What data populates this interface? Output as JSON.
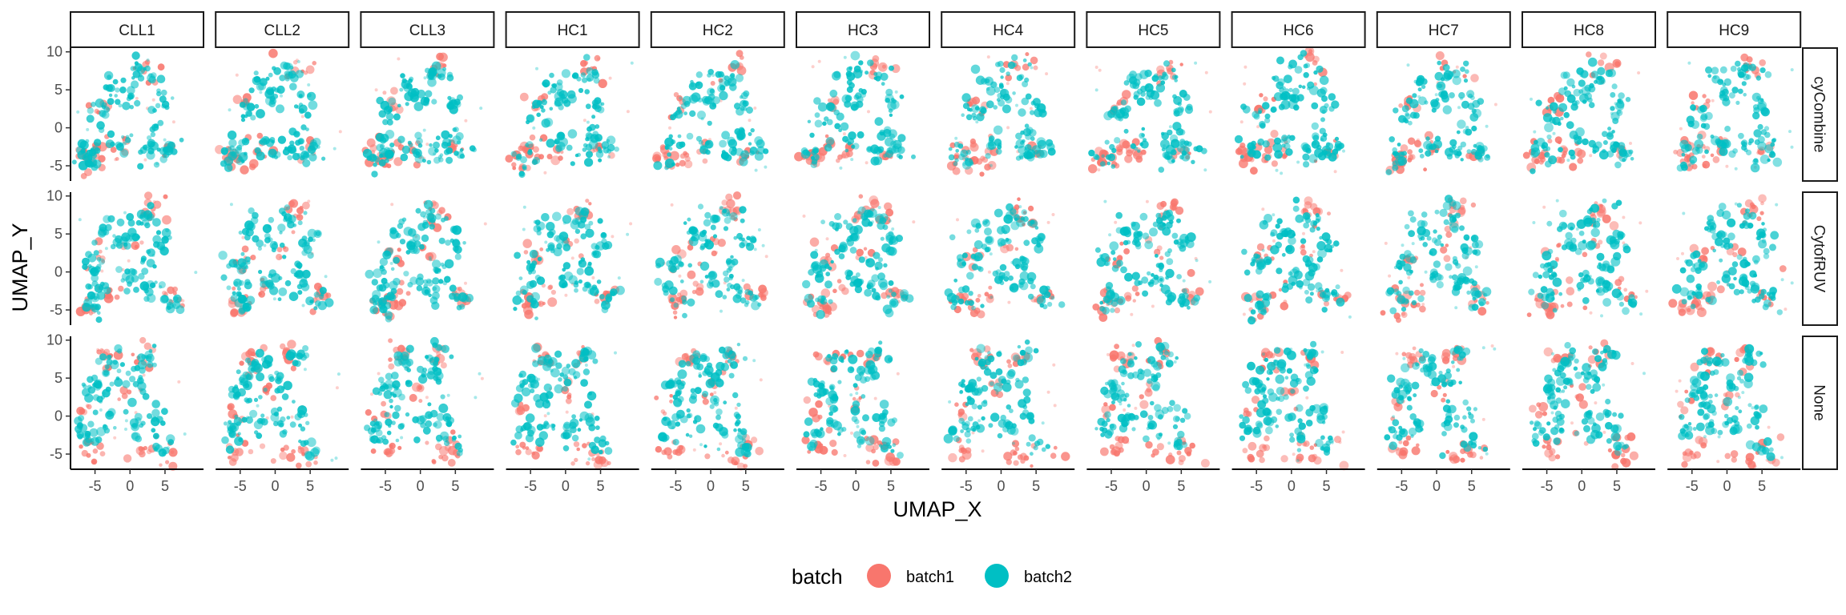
{
  "chart_data": {
    "type": "scatter",
    "facet_columns": [
      "CLL1",
      "CLL2",
      "CLL3",
      "HC1",
      "HC2",
      "HC3",
      "HC4",
      "HC5",
      "HC6",
      "HC7",
      "HC8",
      "HC9"
    ],
    "facet_rows": [
      "cyCombine",
      "CytofRUV",
      "None"
    ],
    "xlabel": "UMAP_X",
    "ylabel": "UMAP_Y",
    "x_ticks": [
      -5,
      0,
      5
    ],
    "y_ticks": [
      -5,
      0,
      5,
      10
    ],
    "xlim": [
      -8.5,
      10.5
    ],
    "ylim": [
      -7,
      10.5
    ],
    "legend": {
      "title": "batch",
      "position": "bottom",
      "entries": [
        {
          "name": "batch1",
          "color": "#F8766D"
        },
        {
          "name": "batch2",
          "color": "#00BFC4"
        }
      ]
    },
    "series": [
      {
        "name": "batch1",
        "color": "#F8766D",
        "clusters": {
          "cyCombine": [
            [
              -6,
              -4,
              1.0,
              0.9,
              0.9
            ],
            [
              -3.5,
              -3,
              0.7,
              1.2,
              0.5
            ],
            [
              -4,
              3,
              0.8,
              0.8,
              0.35
            ],
            [
              3,
              8,
              1.2,
              1.0,
              0.5
            ],
            [
              5,
              -3,
              0.8,
              0.7,
              0.3
            ],
            [
              -1,
              -3,
              0.6,
              0.9,
              0.3
            ]
          ],
          "CytofRUV": [
            [
              -5,
              -4.5,
              1.0,
              1.0,
              0.8
            ],
            [
              3,
              8,
              1.2,
              1.0,
              0.7
            ],
            [
              -4,
              2,
              0.9,
              0.9,
              0.4
            ],
            [
              6,
              -3,
              0.9,
              0.8,
              0.5
            ],
            [
              -2,
              -3,
              0.7,
              1.0,
              0.3
            ],
            [
              1,
              3,
              0.7,
              0.7,
              0.25
            ]
          ],
          "None": [
            [
              -3,
              7.5,
              0.9,
              0.8,
              0.6
            ],
            [
              -5,
              -4.5,
              1.0,
              0.8,
              0.6
            ],
            [
              3.5,
              -5,
              2.2,
              1.2,
              1.0
            ],
            [
              2.5,
              8,
              0.8,
              0.8,
              0.5
            ],
            [
              -6,
              1,
              0.7,
              0.9,
              0.3
            ],
            [
              0,
              3,
              0.7,
              0.9,
              0.3
            ]
          ]
        }
      },
      {
        "name": "batch2",
        "color": "#00BFC4",
        "clusters": {
          "cyCombine": [
            [
              2,
              7,
              1.4,
              1.0,
              1.0
            ],
            [
              0,
              4,
              1.0,
              0.9,
              0.8
            ],
            [
              -4,
              2,
              1.0,
              1.0,
              0.8
            ],
            [
              -5.5,
              -3.5,
              1.0,
              1.2,
              0.9
            ],
            [
              3,
              -3,
              1.2,
              0.9,
              0.9
            ],
            [
              -1,
              -2,
              0.8,
              1.0,
              0.7
            ],
            [
              5,
              3,
              0.8,
              0.9,
              0.7
            ],
            [
              6,
              -3,
              0.8,
              0.8,
              0.6
            ],
            [
              -2,
              6,
              0.8,
              0.8,
              0.5
            ],
            [
              4,
              -1,
              0.7,
              0.7,
              0.5
            ]
          ],
          "CytofRUV": [
            [
              2,
              7,
              1.3,
              1.0,
              1.0
            ],
            [
              -1,
              4,
              1.0,
              0.9,
              0.8
            ],
            [
              -5,
              1,
              1.0,
              1.0,
              0.8
            ],
            [
              -5,
              -3.5,
              1.0,
              1.2,
              0.9
            ],
            [
              3,
              -2,
              1.1,
              0.9,
              0.8
            ],
            [
              0,
              -1,
              0.8,
              0.9,
              0.6
            ],
            [
              5,
              4,
              0.8,
              0.8,
              0.7
            ],
            [
              6,
              -3.5,
              0.8,
              0.8,
              0.6
            ],
            [
              -3,
              6,
              0.8,
              0.8,
              0.5
            ],
            [
              3,
              1,
              0.7,
              0.7,
              0.5
            ]
          ],
          "None": [
            [
              -4,
              3,
              1.2,
              1.2,
              1.0
            ],
            [
              -2,
              7,
              1.0,
              0.9,
              0.8
            ],
            [
              1,
              5,
              1.0,
              0.9,
              0.8
            ],
            [
              3,
              8,
              0.8,
              0.7,
              0.6
            ],
            [
              -6,
              -2,
              0.8,
              1.0,
              0.7
            ],
            [
              1,
              -1,
              0.8,
              1.5,
              0.8
            ],
            [
              4,
              0,
              0.7,
              1.2,
              0.6
            ],
            [
              -3,
              -1,
              0.9,
              0.9,
              0.6
            ],
            [
              5,
              -4,
              0.8,
              0.7,
              0.5
            ],
            [
              -5,
              4,
              0.7,
              0.7,
              0.5
            ]
          ]
        }
      }
    ]
  }
}
